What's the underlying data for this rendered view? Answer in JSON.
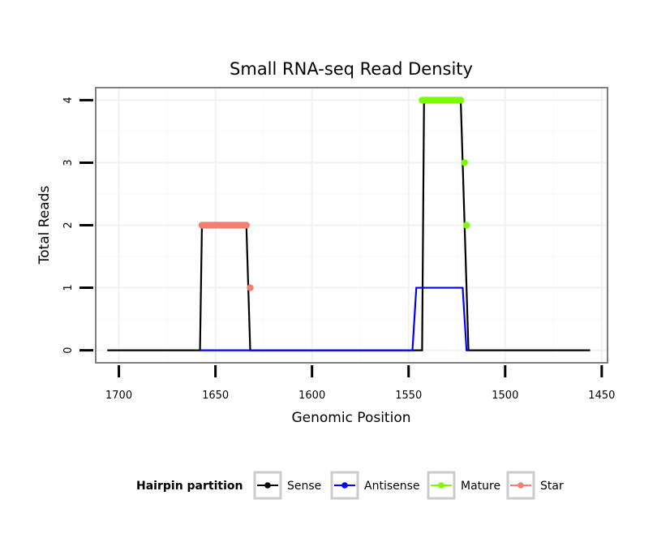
{
  "chart_data": {
    "type": "line",
    "title": "Small RNA-seq Read Density",
    "xlabel": "Genomic Position",
    "ylabel": "Total Reads",
    "xlim": [
      1712,
      1447
    ],
    "x_reversed": true,
    "ylim": [
      -0.2,
      4.2
    ],
    "x_ticks": [
      1700,
      1650,
      1600,
      1550,
      1500,
      1450
    ],
    "x_tick_labels": [
      "1700",
      "1650",
      "1600",
      "1550",
      "1500",
      "1450"
    ],
    "y_ticks": [
      0,
      1,
      2,
      3,
      4
    ],
    "y_tick_labels": [
      "0",
      "1",
      "2",
      "3",
      "4"
    ],
    "grid": true,
    "legend_title": "Hairpin partition",
    "legend_position": "bottom",
    "series": [
      {
        "name": "Sense",
        "color": "#000000",
        "style": "line",
        "x": [
          1706,
          1658,
          1657,
          1634,
          1632,
          1543,
          1542,
          1523,
          1519,
          1456
        ],
        "y": [
          0,
          0,
          2,
          2,
          0,
          0,
          4,
          4,
          0,
          0
        ]
      },
      {
        "name": "Antisense",
        "color": "#0000ff",
        "style": "line",
        "x": [
          1658,
          1632,
          1630,
          1548,
          1546,
          1522,
          1520,
          1519
        ],
        "y": [
          0,
          0,
          0,
          0,
          1,
          1,
          0,
          0
        ]
      },
      {
        "name": "Mature",
        "color": "#7cfc00",
        "style": "points",
        "x": [
          1543,
          1542,
          1541,
          1540,
          1539,
          1538,
          1537,
          1536,
          1535,
          1534,
          1533,
          1532,
          1531,
          1530,
          1529,
          1528,
          1527,
          1526,
          1525,
          1524,
          1523,
          1521,
          1520
        ],
        "y": [
          4,
          4,
          4,
          4,
          4,
          4,
          4,
          4,
          4,
          4,
          4,
          4,
          4,
          4,
          4,
          4,
          4,
          4,
          4,
          4,
          4,
          3,
          2
        ]
      },
      {
        "name": "Star",
        "color": "#f08070",
        "style": "points",
        "x": [
          1657,
          1656,
          1655,
          1654,
          1653,
          1652,
          1651,
          1650,
          1649,
          1648,
          1647,
          1646,
          1645,
          1644,
          1643,
          1642,
          1641,
          1640,
          1639,
          1638,
          1637,
          1636,
          1635,
          1634,
          1632
        ],
        "y": [
          2,
          2,
          2,
          2,
          2,
          2,
          2,
          2,
          2,
          2,
          2,
          2,
          2,
          2,
          2,
          2,
          2,
          2,
          2,
          2,
          2,
          2,
          2,
          2,
          1
        ]
      }
    ]
  }
}
